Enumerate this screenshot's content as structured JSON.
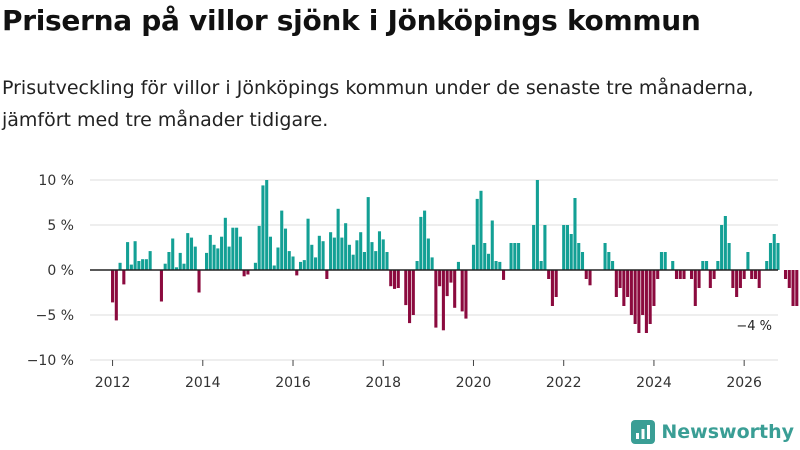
{
  "title": "Priserna på villor sjönk i Jönköpings kommun",
  "subtitle": "Prisutveckling för villor i Jönköpings kommun under de senaste tre månaderna, jämfört med tre månader tidigare.",
  "brand": {
    "name": "Newsworthy",
    "color": "#3a9e95"
  },
  "chart_data": {
    "type": "bar",
    "title": "Priserna på villor sjönk i Jönköpings kommun",
    "xlabel": "",
    "ylabel": "",
    "ylim": [
      -10,
      10
    ],
    "xlim": [
      2011.5,
      2026.75
    ],
    "y_ticks": [
      -10,
      -5,
      0,
      5,
      10
    ],
    "y_tick_labels": [
      "−10 %",
      "−5 %",
      "0 %",
      "5 %",
      "10 %"
    ],
    "x_ticks": [
      2012,
      2014,
      2016,
      2018,
      2020,
      2022,
      2024,
      2026
    ],
    "x_tick_labels": [
      "2012",
      "2014",
      "2016",
      "2018",
      "2020",
      "2022",
      "2024",
      "2026"
    ],
    "colors": {
      "positive": "#13a095",
      "negative": "#8b0a3e"
    },
    "gridlines": true,
    "start": {
      "year": 2012,
      "month": 1
    },
    "values": [
      -3.6,
      -5.6,
      0.8,
      -1.6,
      3.1,
      0.6,
      3.2,
      1.0,
      1.2,
      1.2,
      2.1,
      0.0,
      0.0,
      -3.5,
      0.7,
      2.0,
      3.5,
      0.3,
      1.9,
      0.7,
      4.1,
      3.6,
      2.6,
      -2.5,
      0.0,
      1.9,
      3.9,
      2.8,
      2.4,
      3.7,
      5.8,
      2.6,
      4.7,
      4.7,
      3.7,
      -0.7,
      -0.5,
      0.0,
      0.8,
      4.9,
      9.4,
      10.0,
      3.7,
      0.5,
      2.5,
      6.6,
      4.6,
      2.1,
      1.5,
      -0.6,
      0.9,
      1.1,
      5.7,
      2.8,
      1.4,
      3.8,
      3.2,
      -1.0,
      4.2,
      3.6,
      6.8,
      3.6,
      5.2,
      2.8,
      1.7,
      3.3,
      4.2,
      2.0,
      8.1,
      3.1,
      2.1,
      4.3,
      3.4,
      2.0,
      -1.8,
      -2.1,
      -2.0,
      0.0,
      -3.9,
      -5.9,
      -5.0,
      1.0,
      5.9,
      6.6,
      3.5,
      1.4,
      -6.4,
      -1.8,
      -6.7,
      -2.9,
      -1.4,
      -4.2,
      0.9,
      -4.6,
      -5.4,
      0.0,
      2.8,
      7.9,
      8.8,
      3.0,
      1.8,
      5.5,
      1.0,
      0.9,
      -1.1,
      0.0,
      3.0,
      3.0,
      3.0,
      0.0,
      0.0,
      0.0,
      5.0,
      10.0,
      1.0,
      5.0,
      -1.0,
      -4.0,
      -3.0,
      0.0,
      5.0,
      5.0,
      4.0,
      8.0,
      3.0,
      2.0,
      -1.0,
      -1.7,
      0.0,
      0.0,
      0.0,
      3.0,
      2.0,
      1.0,
      -3.0,
      -2.0,
      -4.0,
      -3.0,
      -5.0,
      -6.0,
      -7.0,
      -5.0,
      -7.0,
      -6.0,
      -4.0,
      -1.0,
      2.0,
      2.0,
      0.0,
      1.0,
      -1.0,
      -1.0,
      -1.0,
      0.0,
      -1.0,
      -4.0,
      -2.0,
      1.0,
      1.0,
      -2.0,
      -1.0,
      1.0,
      5.0,
      6.0,
      3.0,
      -2.0,
      -3.0,
      -2.0,
      -1.0,
      2.0,
      -1.0,
      -1.0,
      -2.0,
      0.0,
      1.0,
      3.0,
      4.0,
      3.0,
      0.0,
      -1.0,
      -2.0,
      -4.0,
      -4.0
    ],
    "annotation": {
      "text": "−4 %",
      "value": -4,
      "year": 2025,
      "month": 12
    }
  }
}
